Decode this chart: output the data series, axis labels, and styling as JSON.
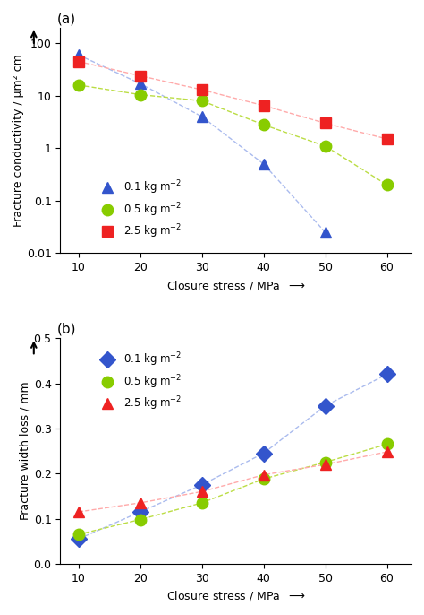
{
  "panel_a": {
    "x": [
      10,
      20,
      30,
      40,
      50,
      60
    ],
    "series": [
      {
        "label": "0.1 kg m$^{-2}$",
        "y": [
          60,
          17,
          4.0,
          0.5,
          0.025,
          null
        ],
        "linecolor": "#aabbee",
        "marker": "^",
        "markercolor": "#3355cc",
        "linestyle": "--"
      },
      {
        "label": "0.5 kg m$^{-2}$",
        "y": [
          16,
          10.5,
          8.0,
          2.8,
          1.1,
          0.2
        ],
        "linecolor": "#bbdd44",
        "marker": "o",
        "markercolor": "#88cc00",
        "linestyle": "--"
      },
      {
        "label": "2.5 kg m$^{-2}$",
        "y": [
          45,
          24,
          13,
          6.5,
          3.0,
          1.5
        ],
        "linecolor": "#ffaaaa",
        "marker": "s",
        "markercolor": "#ee2222",
        "linestyle": "--"
      }
    ],
    "ylabel": "Fracture conductivity / μm² cm",
    "xlabel": "Closure stress / MPa",
    "ylim": [
      0.01,
      200
    ],
    "yticks": [
      0.01,
      0.1,
      1,
      10,
      100
    ],
    "yticklabels": [
      "0.01",
      "0.1",
      "1",
      "10",
      "100"
    ],
    "panel_label": "(a)"
  },
  "panel_b": {
    "x": [
      10,
      20,
      30,
      40,
      50,
      60
    ],
    "series": [
      {
        "label": "0.1 kg m$^{-2}$",
        "y": [
          0.055,
          0.115,
          0.175,
          0.245,
          0.35,
          0.42
        ],
        "linecolor": "#aabbee",
        "marker": "D",
        "markercolor": "#3355cc",
        "linestyle": "--"
      },
      {
        "label": "0.5 kg m$^{-2}$",
        "y": [
          0.065,
          0.098,
          0.135,
          0.188,
          0.225,
          0.265
        ],
        "linecolor": "#bbdd44",
        "marker": "o",
        "markercolor": "#88cc00",
        "linestyle": "--"
      },
      {
        "label": "2.5 kg m$^{-2}$",
        "y": [
          0.115,
          0.135,
          0.16,
          0.197,
          0.22,
          0.248
        ],
        "linecolor": "#ffaaaa",
        "marker": "^",
        "markercolor": "#ee2222",
        "linestyle": "--"
      }
    ],
    "ylabel": "Fracture width loss / mm",
    "xlabel": "Closure stress / MPa",
    "ylim": [
      0.0,
      0.5
    ],
    "yticks": [
      0.0,
      0.1,
      0.2,
      0.3,
      0.4,
      0.5
    ],
    "yticklabels": [
      "0.0",
      "0.1",
      "0.2",
      "0.3",
      "0.4",
      "0.5"
    ],
    "panel_label": "(b)"
  }
}
